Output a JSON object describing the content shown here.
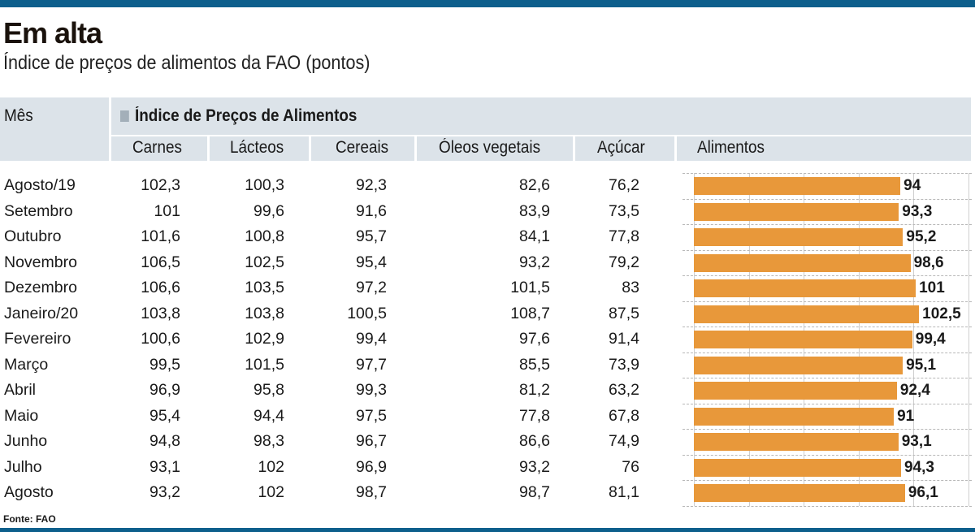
{
  "title": "Em alta",
  "subtitle": "Índice de preços de alimentos da FAO (pontos)",
  "source": "Fonte: FAO",
  "colors": {
    "top_bar": "#0d5f8c",
    "header_bg": "#dce3e9",
    "bar": "#e8983a"
  },
  "header": {
    "month": "Mês",
    "group": "Índice de Preços de Alimentos",
    "columns": [
      "Carnes",
      "Lácteos",
      "Cereais",
      "Óleos vegetais",
      "Açúcar",
      "Alimentos"
    ]
  },
  "chart_data": {
    "type": "table",
    "bar_column": "Alimentos",
    "xlim": [
      0,
      125
    ],
    "grid": true,
    "categories": [
      "Agosto/19",
      "Setembro",
      "Outubro",
      "Novembro",
      "Dezembro",
      "Janeiro/20",
      "Fevereiro",
      "Março",
      "Abril",
      "Maio",
      "Junho",
      "Julho",
      "Agosto"
    ],
    "rows": [
      [
        "102,3",
        "100,3",
        "92,3",
        "82,6",
        "76,2",
        "94"
      ],
      [
        "101",
        "99,6",
        "91,6",
        "83,9",
        "73,5",
        "93,3"
      ],
      [
        "101,6",
        "100,8",
        "95,7",
        "84,1",
        "77,8",
        "95,2"
      ],
      [
        "106,5",
        "102,5",
        "95,4",
        "93,2",
        "79,2",
        "98,6"
      ],
      [
        "106,6",
        "103,5",
        "97,2",
        "101,5",
        "83",
        "101"
      ],
      [
        "103,8",
        "103,8",
        "100,5",
        "108,7",
        "87,5",
        "102,5"
      ],
      [
        "100,6",
        "102,9",
        "99,4",
        "97,6",
        "91,4",
        "99,4"
      ],
      [
        "99,5",
        "101,5",
        "97,7",
        "85,5",
        "73,9",
        "95,1"
      ],
      [
        "96,9",
        "95,8",
        "99,3",
        "81,2",
        "63,2",
        "92,4"
      ],
      [
        "95,4",
        "94,4",
        "97,5",
        "77,8",
        "67,8",
        "91"
      ],
      [
        "94,8",
        "98,3",
        "96,7",
        "86,6",
        "74,9",
        "93,1"
      ],
      [
        "93,1",
        "102",
        "96,9",
        "93,2",
        "76",
        "94,3"
      ],
      [
        "93,2",
        "102",
        "98,7",
        "98,7",
        "81,1",
        "96,1"
      ]
    ]
  }
}
